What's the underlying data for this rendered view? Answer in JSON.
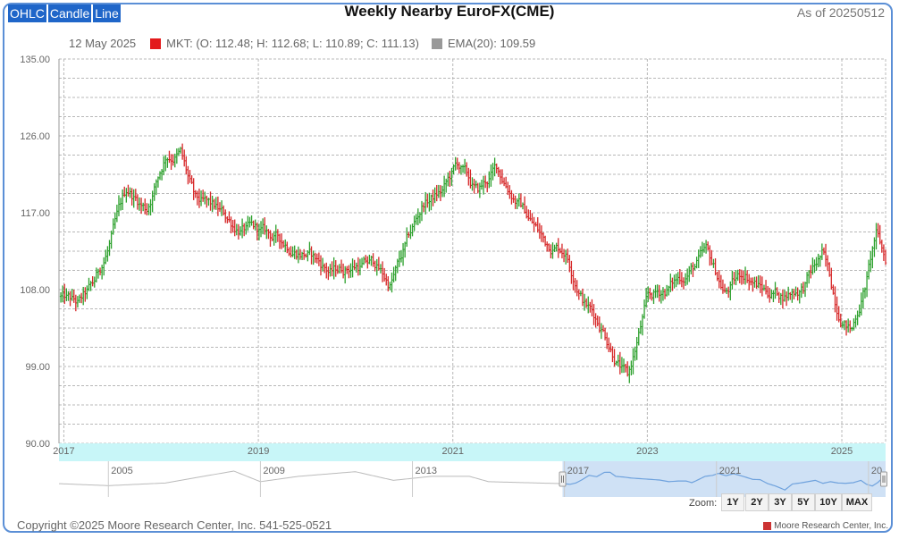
{
  "chart_type_buttons": [
    "OHLC",
    "Candle",
    "Line"
  ],
  "title": "Weekly Nearby EuroFX(CME)",
  "as_of": "As of 20250512",
  "legend": {
    "date": "12 May 2025",
    "mkt_text": "MKT: (O: 112.48; H: 112.68; L: 110.89; C: 111.13)",
    "ema_text": "EMA(20): 109.59",
    "mkt_color": "#e31a1c",
    "ema_color": "#999999"
  },
  "colors": {
    "up": "#2ca02c",
    "down": "#d62728",
    "navigator_band": "#c8f6f8",
    "navigator_sel": "#cfe1f5",
    "navigator_line": "#6fa2dd"
  },
  "zoom": {
    "label": "Zoom:",
    "buttons": [
      "1Y",
      "2Y",
      "3Y",
      "5Y",
      "10Y",
      "MAX"
    ]
  },
  "navigator": {
    "labels": [
      "2005",
      "2009",
      "2013",
      "2017",
      "2021",
      "20"
    ]
  },
  "copyright": "Copyright ©2025 Moore Research Center, Inc. 541-525-0521",
  "brand": "Moore Research Center, Inc.",
  "chart_data": {
    "type": "ohlc",
    "title": "Weekly Nearby EuroFX(CME)",
    "y_ticks": [
      "135.00",
      "126.00",
      "117.00",
      "108.00",
      "99.00",
      "90.00"
    ],
    "x_ticks": [
      "2017",
      "2019",
      "2021",
      "2023",
      "2025"
    ],
    "ylim": [
      90,
      135
    ],
    "xlim": [
      2016.95,
      2025.45
    ],
    "grid": true,
    "series": [
      {
        "name": "MKT",
        "anchors": [
          [
            2016.95,
            107.2
          ],
          [
            2017.15,
            106.0
          ],
          [
            2017.3,
            108.0
          ],
          [
            2017.45,
            112.5
          ],
          [
            2017.65,
            119.5
          ],
          [
            2017.85,
            117.5
          ],
          [
            2018.05,
            124.0
          ],
          [
            2018.2,
            124.2
          ],
          [
            2018.35,
            118.0
          ],
          [
            2018.55,
            117.0
          ],
          [
            2018.75,
            115.5
          ],
          [
            2019.0,
            114.5
          ],
          [
            2019.25,
            113.5
          ],
          [
            2019.5,
            112.5
          ],
          [
            2019.75,
            110.0
          ],
          [
            2020.0,
            111.0
          ],
          [
            2020.2,
            111.0
          ],
          [
            2020.35,
            108.5
          ],
          [
            2020.45,
            111.0
          ],
          [
            2020.7,
            118.0
          ],
          [
            2020.9,
            119.5
          ],
          [
            2021.05,
            122.5
          ],
          [
            2021.25,
            119.0
          ],
          [
            2021.45,
            122.0
          ],
          [
            2021.7,
            118.0
          ],
          [
            2021.95,
            113.5
          ],
          [
            2022.15,
            113.0
          ],
          [
            2022.35,
            107.0
          ],
          [
            2022.55,
            103.5
          ],
          [
            2022.8,
            97.5
          ],
          [
            2023.0,
            106.5
          ],
          [
            2023.2,
            108.0
          ],
          [
            2023.4,
            110.0
          ],
          [
            2023.6,
            112.0
          ],
          [
            2023.8,
            107.5
          ],
          [
            2024.0,
            110.0
          ],
          [
            2024.2,
            108.0
          ],
          [
            2024.4,
            107.5
          ],
          [
            2024.6,
            108.5
          ],
          [
            2024.8,
            112.0
          ],
          [
            2024.95,
            106.0
          ],
          [
            2025.1,
            103.5
          ],
          [
            2025.25,
            109.0
          ],
          [
            2025.35,
            114.5
          ],
          [
            2025.45,
            111.13
          ]
        ]
      }
    ],
    "last": {
      "date": "12 May 2025",
      "open": 112.48,
      "high": 112.68,
      "low": 110.89,
      "close": 111.13
    },
    "ema20": 109.59
  }
}
